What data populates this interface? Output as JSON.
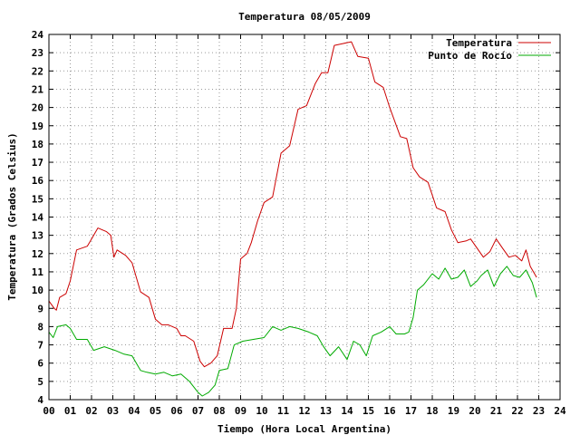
{
  "chart_data": {
    "type": "line",
    "title": "Temperatura 08/05/2009",
    "xlabel": "Tiempo (Hora Local Argentina)",
    "ylabel": "Temperatura (Grados Celsius)",
    "xlim": [
      0,
      24
    ],
    "ylim": [
      4,
      24
    ],
    "xticks": [
      "00",
      "01",
      "02",
      "03",
      "04",
      "05",
      "06",
      "07",
      "08",
      "09",
      "10",
      "11",
      "12",
      "13",
      "14",
      "15",
      "16",
      "17",
      "18",
      "19",
      "20",
      "21",
      "22",
      "23",
      "24"
    ],
    "yticks": [
      "4",
      "5",
      "6",
      "7",
      "8",
      "9",
      "10",
      "11",
      "12",
      "13",
      "14",
      "15",
      "16",
      "17",
      "18",
      "19",
      "20",
      "21",
      "22",
      "23",
      "24"
    ],
    "grid": true,
    "legend_position": "top-right",
    "series": [
      {
        "name": "Temperatura",
        "color": "#cc0000",
        "points": [
          [
            0.0,
            9.4
          ],
          [
            0.25,
            9.0
          ],
          [
            0.35,
            8.9
          ],
          [
            0.5,
            9.6
          ],
          [
            0.8,
            9.8
          ],
          [
            1.0,
            10.5
          ],
          [
            1.3,
            12.2
          ],
          [
            1.8,
            12.4
          ],
          [
            2.0,
            12.8
          ],
          [
            2.3,
            13.4
          ],
          [
            2.7,
            13.2
          ],
          [
            2.9,
            13.0
          ],
          [
            3.05,
            11.8
          ],
          [
            3.2,
            12.2
          ],
          [
            3.6,
            11.9
          ],
          [
            3.9,
            11.5
          ],
          [
            4.3,
            9.9
          ],
          [
            4.7,
            9.6
          ],
          [
            5.0,
            8.4
          ],
          [
            5.3,
            8.1
          ],
          [
            5.6,
            8.1
          ],
          [
            6.0,
            7.9
          ],
          [
            6.2,
            7.5
          ],
          [
            6.4,
            7.5
          ],
          [
            6.8,
            7.2
          ],
          [
            7.1,
            6.1
          ],
          [
            7.3,
            5.8
          ],
          [
            7.6,
            6.0
          ],
          [
            7.9,
            6.4
          ],
          [
            8.2,
            7.9
          ],
          [
            8.6,
            7.9
          ],
          [
            8.8,
            9.0
          ],
          [
            9.0,
            11.7
          ],
          [
            9.3,
            12.0
          ],
          [
            9.5,
            12.6
          ],
          [
            9.8,
            13.8
          ],
          [
            10.1,
            14.8
          ],
          [
            10.5,
            15.1
          ],
          [
            10.9,
            17.5
          ],
          [
            11.3,
            17.9
          ],
          [
            11.7,
            19.9
          ],
          [
            12.1,
            20.1
          ],
          [
            12.5,
            21.3
          ],
          [
            12.8,
            21.9
          ],
          [
            13.1,
            21.9
          ],
          [
            13.4,
            23.4
          ],
          [
            13.8,
            23.5
          ],
          [
            14.2,
            23.6
          ],
          [
            14.5,
            22.8
          ],
          [
            15.0,
            22.7
          ],
          [
            15.3,
            21.4
          ],
          [
            15.7,
            21.1
          ],
          [
            16.0,
            20.0
          ],
          [
            16.5,
            18.4
          ],
          [
            16.8,
            18.3
          ],
          [
            17.1,
            16.7
          ],
          [
            17.4,
            16.2
          ],
          [
            17.8,
            15.9
          ],
          [
            18.2,
            14.5
          ],
          [
            18.6,
            14.3
          ],
          [
            18.9,
            13.3
          ],
          [
            19.2,
            12.6
          ],
          [
            19.6,
            12.7
          ],
          [
            19.8,
            12.8
          ],
          [
            20.1,
            12.3
          ],
          [
            20.4,
            11.8
          ],
          [
            20.7,
            12.1
          ],
          [
            21.0,
            12.8
          ],
          [
            21.3,
            12.3
          ],
          [
            21.6,
            11.8
          ],
          [
            21.9,
            11.9
          ],
          [
            22.2,
            11.6
          ],
          [
            22.4,
            12.2
          ],
          [
            22.6,
            11.3
          ],
          [
            22.9,
            10.7
          ]
        ]
      },
      {
        "name": "Punto de Rocío",
        "color": "#00aa00",
        "points": [
          [
            0.0,
            7.7
          ],
          [
            0.2,
            7.4
          ],
          [
            0.4,
            8.0
          ],
          [
            0.8,
            8.1
          ],
          [
            1.0,
            7.9
          ],
          [
            1.3,
            7.3
          ],
          [
            1.8,
            7.3
          ],
          [
            2.1,
            6.7
          ],
          [
            2.6,
            6.9
          ],
          [
            3.1,
            6.7
          ],
          [
            3.5,
            6.5
          ],
          [
            3.9,
            6.4
          ],
          [
            4.3,
            5.6
          ],
          [
            4.6,
            5.5
          ],
          [
            5.0,
            5.4
          ],
          [
            5.4,
            5.5
          ],
          [
            5.8,
            5.3
          ],
          [
            6.2,
            5.4
          ],
          [
            6.6,
            5.0
          ],
          [
            7.0,
            4.4
          ],
          [
            7.2,
            4.2
          ],
          [
            7.5,
            4.4
          ],
          [
            7.8,
            4.8
          ],
          [
            8.0,
            5.6
          ],
          [
            8.4,
            5.7
          ],
          [
            8.7,
            7.0
          ],
          [
            9.1,
            7.2
          ],
          [
            9.6,
            7.3
          ],
          [
            10.1,
            7.4
          ],
          [
            10.5,
            8.0
          ],
          [
            10.9,
            7.8
          ],
          [
            11.3,
            8.0
          ],
          [
            11.7,
            7.9
          ],
          [
            12.2,
            7.7
          ],
          [
            12.6,
            7.5
          ],
          [
            12.9,
            6.9
          ],
          [
            13.2,
            6.4
          ],
          [
            13.6,
            6.9
          ],
          [
            14.0,
            6.2
          ],
          [
            14.3,
            7.2
          ],
          [
            14.6,
            7.0
          ],
          [
            14.9,
            6.4
          ],
          [
            15.2,
            7.5
          ],
          [
            15.6,
            7.7
          ],
          [
            16.0,
            8.0
          ],
          [
            16.3,
            7.6
          ],
          [
            16.7,
            7.6
          ],
          [
            16.9,
            7.7
          ],
          [
            17.1,
            8.5
          ],
          [
            17.3,
            10.0
          ],
          [
            17.6,
            10.3
          ],
          [
            18.0,
            10.9
          ],
          [
            18.3,
            10.6
          ],
          [
            18.6,
            11.2
          ],
          [
            18.9,
            10.6
          ],
          [
            19.2,
            10.7
          ],
          [
            19.5,
            11.1
          ],
          [
            19.8,
            10.2
          ],
          [
            20.1,
            10.5
          ],
          [
            20.3,
            10.8
          ],
          [
            20.6,
            11.1
          ],
          [
            20.9,
            10.2
          ],
          [
            21.2,
            10.9
          ],
          [
            21.5,
            11.3
          ],
          [
            21.8,
            10.8
          ],
          [
            22.1,
            10.7
          ],
          [
            22.4,
            11.1
          ],
          [
            22.7,
            10.4
          ],
          [
            22.9,
            9.6
          ]
        ]
      }
    ]
  }
}
